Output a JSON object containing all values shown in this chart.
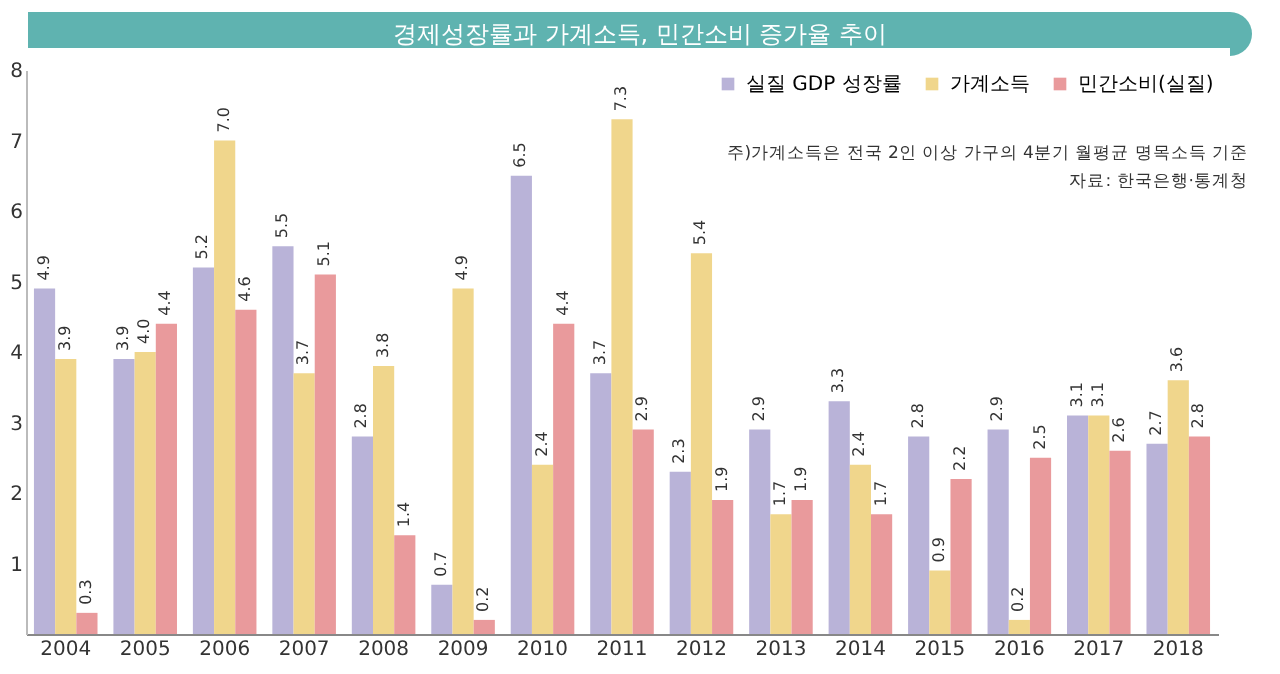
{
  "chart_data": {
    "type": "bar",
    "title": "경제성장률과 가계소득, 민간소비 증가율 추이",
    "categories": [
      "2004",
      "2005",
      "2006",
      "2007",
      "2008",
      "2009",
      "2010",
      "2011",
      "2012",
      "2013",
      "2014",
      "2015",
      "2016",
      "2017",
      "2018"
    ],
    "series": [
      {
        "name": "실질 GDP 성장률",
        "color": "#b9b3d8",
        "values": [
          4.9,
          3.9,
          5.2,
          5.5,
          2.8,
          0.7,
          6.5,
          3.7,
          2.3,
          2.9,
          3.3,
          2.8,
          2.9,
          3.1,
          2.7
        ],
        "value_labels": [
          "4.9",
          "3.9",
          "5.2",
          "5.5",
          "2.8",
          "0.7",
          "6.5",
          "3.7",
          "2.3",
          "2.9",
          "3.3",
          "2.8",
          "2.9",
          "3.1",
          "2.7"
        ]
      },
      {
        "name": "가계소득",
        "color": "#f0d68c",
        "values": [
          3.9,
          4.0,
          7.0,
          3.7,
          3.8,
          4.9,
          2.4,
          7.3,
          5.4,
          1.7,
          2.4,
          0.9,
          0.2,
          3.1,
          3.6
        ],
        "value_labels": [
          "3.9",
          "4.0",
          "7.0",
          "3.7",
          "3.8",
          "4.9",
          "2.4",
          "7.3",
          "5.4",
          "1.7",
          "2.4",
          "0.9",
          "0.2",
          "3.1",
          "3.6"
        ]
      },
      {
        "name": "민간소비(실질)",
        "color": "#e99a9c",
        "values": [
          0.3,
          4.4,
          4.6,
          5.1,
          1.4,
          0.2,
          4.4,
          2.9,
          1.9,
          1.9,
          1.7,
          2.2,
          2.5,
          2.6,
          2.8
        ],
        "value_labels": [
          "0.3",
          "4.4",
          "4.6",
          "5.1",
          "1.4",
          "0.2",
          "4.4",
          "2.9",
          "1.9",
          "1.9",
          "1.7",
          "2.2",
          "2.5",
          "2.6",
          "2.8"
        ]
      }
    ],
    "ylim": [
      0,
      8
    ],
    "yticks": [
      1,
      2,
      3,
      4,
      5,
      6,
      7,
      8
    ],
    "grid": false,
    "legend": "top right",
    "annotations": [
      "주)가계소득은 전국 2인 이상 가구의 4분기 월평균 명목소득 기준",
      "자료: 한국은행·통계청"
    ]
  }
}
